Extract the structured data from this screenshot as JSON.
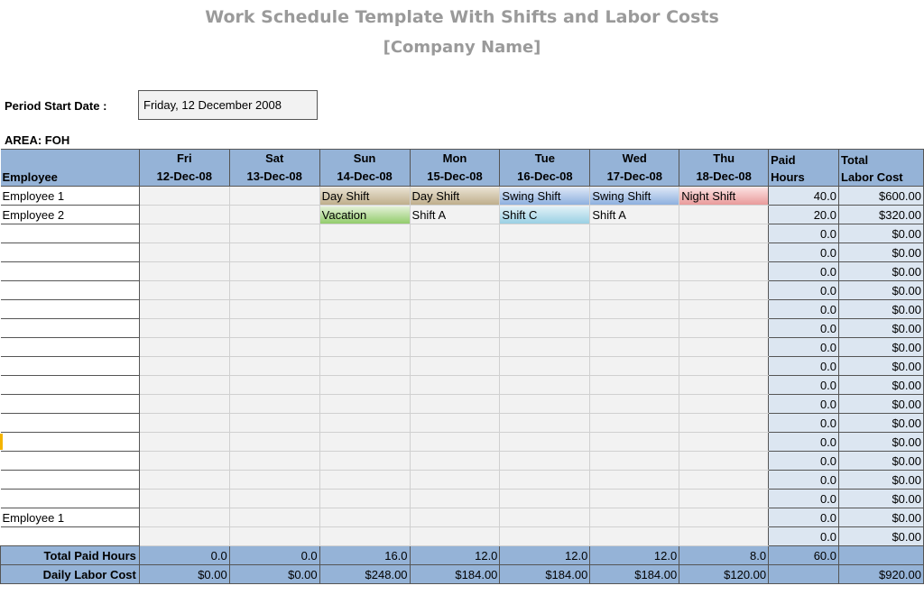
{
  "title": "Work Schedule Template With Shifts and Labor Costs",
  "subtitle": "[Company Name]",
  "period_start": {
    "label": "Period Start Date :",
    "value": "Friday, 12 December 2008"
  },
  "area_label": "AREA: FOH",
  "header": {
    "employee": "Employee",
    "days": [
      {
        "dow": "Fri",
        "date": "12-Dec-08"
      },
      {
        "dow": "Sat",
        "date": "13-Dec-08"
      },
      {
        "dow": "Sun",
        "date": "14-Dec-08"
      },
      {
        "dow": "Mon",
        "date": "15-Dec-08"
      },
      {
        "dow": "Tue",
        "date": "16-Dec-08"
      },
      {
        "dow": "Wed",
        "date": "17-Dec-08"
      },
      {
        "dow": "Thu",
        "date": "18-Dec-08"
      }
    ],
    "paid_hours": [
      "Paid",
      "Hours"
    ],
    "total_cost": [
      "Total",
      "Labor Cost"
    ]
  },
  "rows": [
    {
      "name": "Employee 1",
      "shifts": [
        "",
        "",
        "Day Shift",
        "Day Shift",
        "Swing Shift",
        "Swing Shift",
        "Night Shift"
      ],
      "styles": [
        "",
        "",
        "day",
        "day",
        "swing",
        "swing",
        "night"
      ],
      "hours": "40.0",
      "cost": "$600.00"
    },
    {
      "name": "Employee 2",
      "shifts": [
        "",
        "",
        "Vacation",
        "Shift A",
        "Shift C",
        "Shift A",
        ""
      ],
      "styles": [
        "",
        "",
        "vac",
        "plain",
        "c",
        "plain",
        ""
      ],
      "hours": "20.0",
      "cost": "$320.00"
    },
    {
      "name": "",
      "shifts": [
        "",
        "",
        "",
        "",
        "",
        "",
        ""
      ],
      "styles": [
        "",
        "",
        "",
        "",
        "",
        "",
        ""
      ],
      "hours": "0.0",
      "cost": "$0.00"
    },
    {
      "name": "",
      "shifts": [
        "",
        "",
        "",
        "",
        "",
        "",
        ""
      ],
      "styles": [
        "",
        "",
        "",
        "",
        "",
        "",
        ""
      ],
      "hours": "0.0",
      "cost": "$0.00"
    },
    {
      "name": "",
      "shifts": [
        "",
        "",
        "",
        "",
        "",
        "",
        ""
      ],
      "styles": [
        "",
        "",
        "",
        "",
        "",
        "",
        ""
      ],
      "hours": "0.0",
      "cost": "$0.00"
    },
    {
      "name": "",
      "shifts": [
        "",
        "",
        "",
        "",
        "",
        "",
        ""
      ],
      "styles": [
        "",
        "",
        "",
        "",
        "",
        "",
        ""
      ],
      "hours": "0.0",
      "cost": "$0.00"
    },
    {
      "name": "",
      "shifts": [
        "",
        "",
        "",
        "",
        "",
        "",
        ""
      ],
      "styles": [
        "",
        "",
        "",
        "",
        "",
        "",
        ""
      ],
      "hours": "0.0",
      "cost": "$0.00"
    },
    {
      "name": "",
      "shifts": [
        "",
        "",
        "",
        "",
        "",
        "",
        ""
      ],
      "styles": [
        "",
        "",
        "",
        "",
        "",
        "",
        ""
      ],
      "hours": "0.0",
      "cost": "$0.00"
    },
    {
      "name": "",
      "shifts": [
        "",
        "",
        "",
        "",
        "",
        "",
        ""
      ],
      "styles": [
        "",
        "",
        "",
        "",
        "",
        "",
        ""
      ],
      "hours": "0.0",
      "cost": "$0.00"
    },
    {
      "name": "",
      "shifts": [
        "",
        "",
        "",
        "",
        "",
        "",
        ""
      ],
      "styles": [
        "",
        "",
        "",
        "",
        "",
        "",
        ""
      ],
      "hours": "0.0",
      "cost": "$0.00"
    },
    {
      "name": "",
      "shifts": [
        "",
        "",
        "",
        "",
        "",
        "",
        ""
      ],
      "styles": [
        "",
        "",
        "",
        "",
        "",
        "",
        ""
      ],
      "hours": "0.0",
      "cost": "$0.00"
    },
    {
      "name": "",
      "shifts": [
        "",
        "",
        "",
        "",
        "",
        "",
        ""
      ],
      "styles": [
        "",
        "",
        "",
        "",
        "",
        "",
        ""
      ],
      "hours": "0.0",
      "cost": "$0.00"
    },
    {
      "name": "",
      "shifts": [
        "",
        "",
        "",
        "",
        "",
        "",
        ""
      ],
      "styles": [
        "",
        "",
        "",
        "",
        "",
        "",
        ""
      ],
      "hours": "0.0",
      "cost": "$0.00"
    },
    {
      "name": "",
      "shifts": [
        "",
        "",
        "",
        "",
        "",
        "",
        ""
      ],
      "styles": [
        "",
        "",
        "",
        "",
        "",
        "",
        ""
      ],
      "hours": "0.0",
      "cost": "$0.00"
    },
    {
      "name": "",
      "shifts": [
        "",
        "",
        "",
        "",
        "",
        "",
        ""
      ],
      "styles": [
        "",
        "",
        "",
        "",
        "",
        "",
        ""
      ],
      "hours": "0.0",
      "cost": "$0.00"
    },
    {
      "name": "",
      "shifts": [
        "",
        "",
        "",
        "",
        "",
        "",
        ""
      ],
      "styles": [
        "",
        "",
        "",
        "",
        "",
        "",
        ""
      ],
      "hours": "0.0",
      "cost": "$0.00"
    },
    {
      "name": "",
      "shifts": [
        "",
        "",
        "",
        "",
        "",
        "",
        ""
      ],
      "styles": [
        "",
        "",
        "",
        "",
        "",
        "",
        ""
      ],
      "hours": "0.0",
      "cost": "$0.00"
    },
    {
      "name": "Employee 1",
      "shifts": [
        "",
        "",
        "",
        "",
        "",
        "",
        ""
      ],
      "styles": [
        "",
        "",
        "",
        "",
        "",
        "",
        ""
      ],
      "hours": "0.0",
      "cost": "$0.00"
    },
    {
      "name": "",
      "shifts": [
        "",
        "",
        "",
        "",
        "",
        "",
        ""
      ],
      "styles": [
        "",
        "",
        "",
        "",
        "",
        "",
        ""
      ],
      "hours": "0.0",
      "cost": "$0.00"
    }
  ],
  "totals": {
    "paid_hours_label": "Total Paid Hours",
    "paid_hours": [
      "0.0",
      "0.0",
      "16.0",
      "12.0",
      "12.0",
      "12.0",
      "8.0"
    ],
    "paid_hours_total": "60.0",
    "labor_cost_label": "Daily Labor Cost",
    "labor_cost": [
      "$0.00",
      "$0.00",
      "$248.00",
      "$184.00",
      "$184.00",
      "$184.00",
      "$120.00"
    ],
    "labor_cost_total": "$920.00"
  },
  "colors": {
    "header_bg": "#95b3d7",
    "summary_bg": "#dce6f1",
    "cell_bg": "#f2f2f2",
    "title_color": "#9a9a9a"
  }
}
